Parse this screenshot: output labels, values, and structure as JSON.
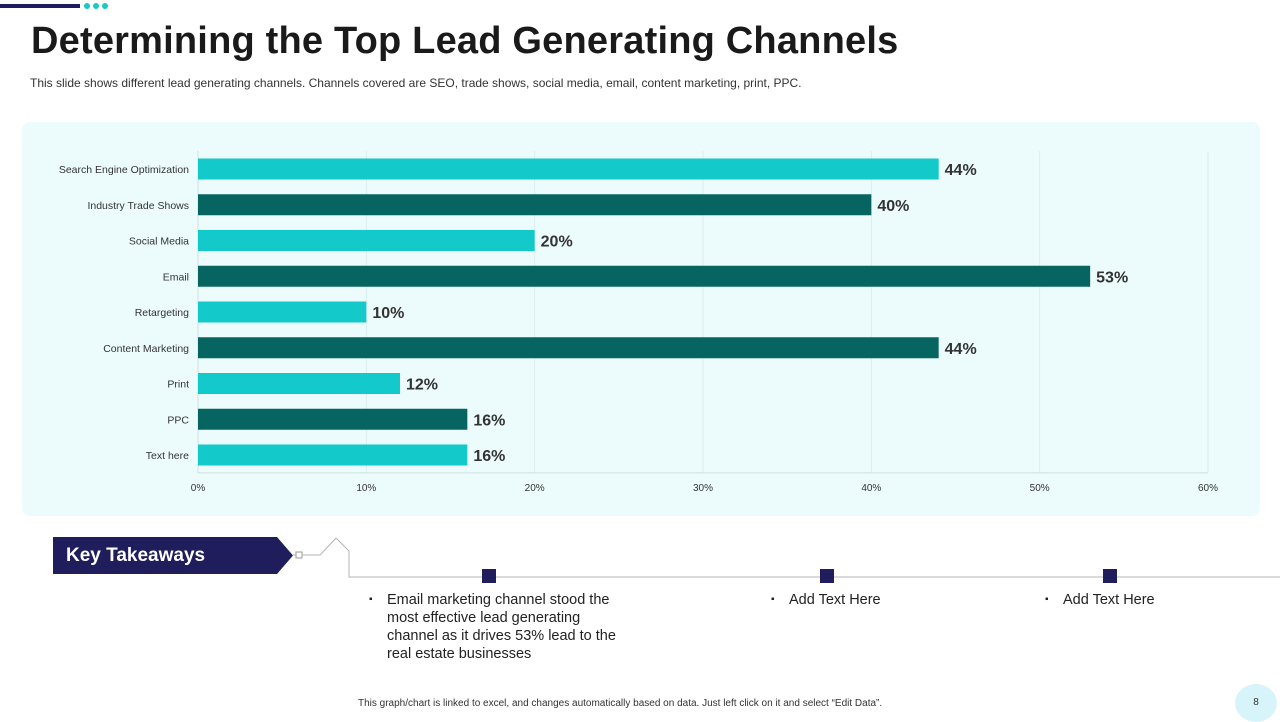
{
  "slide": {
    "title": "Determining the Top Lead Generating Channels",
    "subtitle": "This slide shows different lead generating channels. Channels covered are SEO, trade shows, social media, email, content marketing, print, PPC.",
    "page_number": "8",
    "footnote": "This graph/chart is linked to excel, and changes automatically based on data. Just left click on it and select “Edit Data”."
  },
  "colors": {
    "accent_navy": "#1f1d5b",
    "bar_light": "#13c9c9",
    "bar_dark": "#066461",
    "panel_bg": "#ecfcfc",
    "page_badge": "#d7f4fb"
  },
  "chart_data": {
    "type": "bar",
    "orientation": "horizontal",
    "title": "",
    "xlabel": "",
    "ylabel": "",
    "categories": [
      "Search Engine Optimization",
      "Industry Trade Shows",
      "Social Media",
      "Email",
      "Retargeting",
      "Content Marketing",
      "Print",
      "PPC",
      "Text here"
    ],
    "values": [
      44,
      40,
      20,
      53,
      10,
      44,
      12,
      16,
      16
    ],
    "value_labels": [
      "44%",
      "40%",
      "20%",
      "53%",
      "10%",
      "44%",
      "12%",
      "16%",
      "16%"
    ],
    "xlim": [
      0,
      60
    ],
    "xticks": [
      0,
      10,
      20,
      30,
      40,
      50,
      60
    ],
    "xtick_labels": [
      "0%",
      "10%",
      "20%",
      "30%",
      "40%",
      "50%",
      "60%"
    ],
    "grid": true,
    "legend": "none",
    "bar_colors": [
      "#13c9c9",
      "#066461",
      "#13c9c9",
      "#066461",
      "#13c9c9",
      "#066461",
      "#13c9c9",
      "#066461",
      "#13c9c9"
    ]
  },
  "takeaways": {
    "heading": "Key Takeaways",
    "bullet_symbol": "▪",
    "items": [
      {
        "text": "Email marketing channel stood the most effective lead generating channel as it drives 53% lead to the real estate businesses"
      },
      {
        "text": "Add Text Here"
      },
      {
        "text": "Add Text Here"
      }
    ]
  }
}
